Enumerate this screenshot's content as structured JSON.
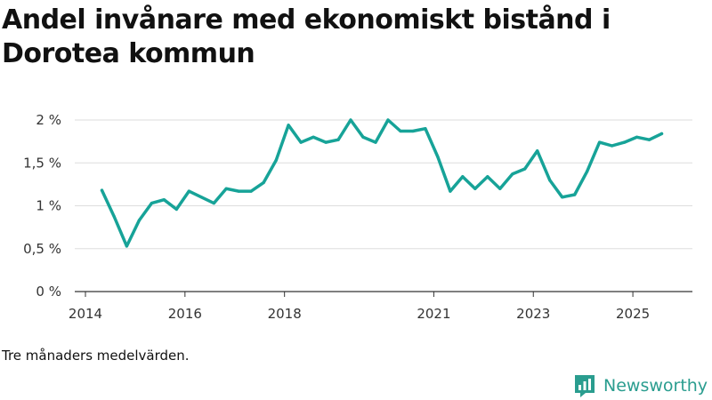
{
  "title": "Andel invånare med ekonomiskt bistånd i Dorotea kommun",
  "note": "Tre månaders medelvärden.",
  "brand": {
    "name": "Newsworthy",
    "icon": "newsworthy-logo-icon"
  },
  "colors": {
    "line": "#17a398",
    "grid": "#dddddd",
    "axis": "#333333"
  },
  "chart_data": {
    "type": "line",
    "title": "Andel invånare med ekonomiskt bistånd i Dorotea kommun",
    "xlabel": "",
    "ylabel": "",
    "ylim": [
      0,
      2.1
    ],
    "xlim": [
      2014.0,
      2026.0
    ],
    "grid": true,
    "yticks": [
      {
        "value": 0,
        "label": "0 %"
      },
      {
        "value": 0.5,
        "label": "0,5 %"
      },
      {
        "value": 1,
        "label": "1 %"
      },
      {
        "value": 1.5,
        "label": "1,5 %"
      },
      {
        "value": 2,
        "label": "2 %"
      }
    ],
    "xticks": [
      {
        "value": 2014,
        "label": "2014"
      },
      {
        "value": 2016,
        "label": "2016"
      },
      {
        "value": 2018,
        "label": "2018"
      },
      {
        "value": 2021,
        "label": "2021"
      },
      {
        "value": 2023,
        "label": "2023"
      },
      {
        "value": 2025,
        "label": "2025"
      }
    ],
    "series": [
      {
        "name": "Andel invånare med ekonomiskt bistånd",
        "x": [
          2014.33,
          2014.58,
          2014.83,
          2015.08,
          2015.33,
          2015.58,
          2015.83,
          2016.08,
          2016.33,
          2016.58,
          2016.83,
          2017.08,
          2017.33,
          2017.58,
          2017.83,
          2018.08,
          2018.33,
          2018.58,
          2018.83,
          2019.08,
          2019.33,
          2019.58,
          2019.83,
          2020.08,
          2020.33,
          2020.58,
          2020.83,
          2021.08,
          2021.33,
          2021.58,
          2021.83,
          2022.08,
          2022.33,
          2022.58,
          2022.83,
          2023.08,
          2023.33,
          2023.58,
          2023.83,
          2024.08,
          2024.33,
          2024.58,
          2024.83,
          2025.08,
          2025.33,
          2025.58
        ],
        "values": [
          1.18,
          0.87,
          0.53,
          0.83,
          1.03,
          1.07,
          0.96,
          1.17,
          1.1,
          1.03,
          1.2,
          1.17,
          1.17,
          1.27,
          1.53,
          1.94,
          1.74,
          1.8,
          1.74,
          1.77,
          2.0,
          1.8,
          1.74,
          2.0,
          1.87,
          1.87,
          1.9,
          1.57,
          1.17,
          1.34,
          1.2,
          1.34,
          1.2,
          1.37,
          1.43,
          1.64,
          1.3,
          1.1,
          1.13,
          1.4,
          1.74,
          1.7,
          1.74,
          1.8,
          1.77,
          1.84
        ]
      }
    ]
  }
}
